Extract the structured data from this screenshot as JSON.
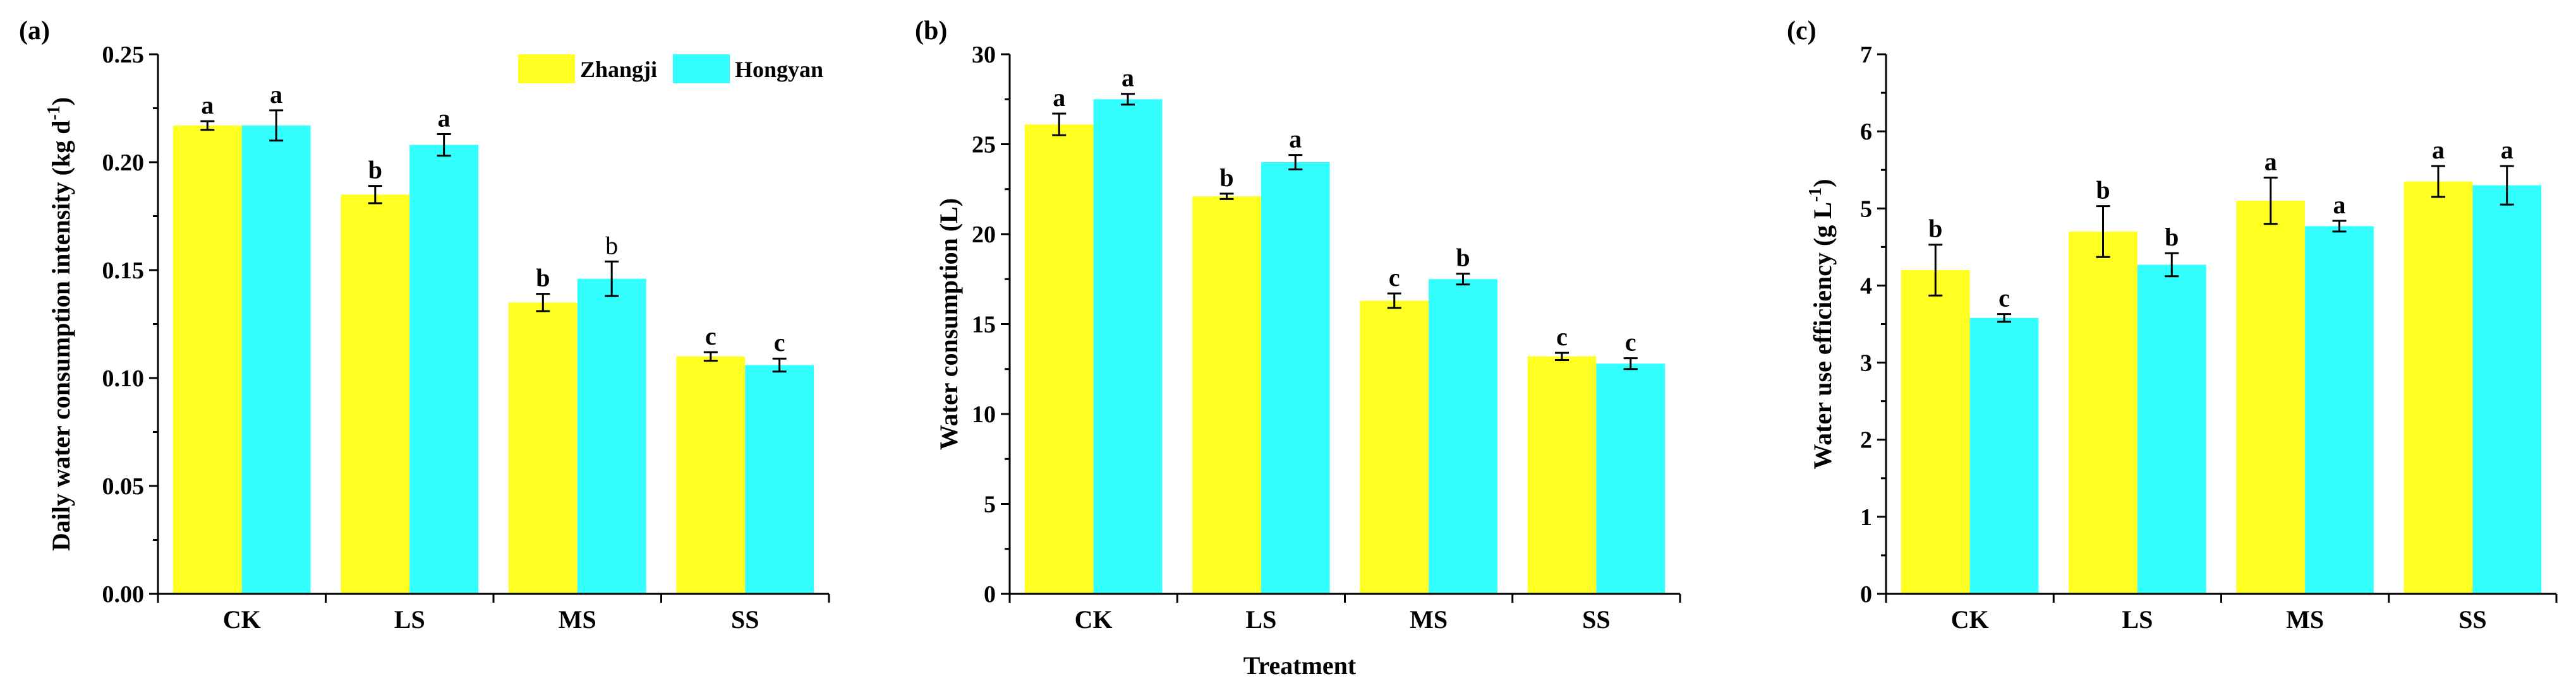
{
  "colors": {
    "series1": "#ffff22",
    "series2": "#33ffff",
    "axis": "#000000"
  },
  "legend": {
    "items": [
      "Zhangji",
      "Hongyan"
    ]
  },
  "shared_xlabel": "Treatment",
  "chart_data": [
    {
      "type": "bar",
      "panel_label": "(a)",
      "title": "",
      "xlabel": "",
      "ylabel": "Daily water consumption intensity  (kg d",
      "ylabel_sup": "-1",
      "ylabel_close": ")",
      "ylim": [
        0,
        0.25
      ],
      "yticks": [
        0,
        0.05,
        0.1,
        0.15,
        0.2,
        0.25
      ],
      "ytick_labels": [
        "0.00",
        "0.05",
        "0.10",
        "0.15",
        "0.20",
        "0.25"
      ],
      "categories": [
        "CK",
        "LS",
        "MS",
        "SS"
      ],
      "series": [
        {
          "name": "Zhangji",
          "values": [
            0.217,
            0.185,
            0.135,
            0.11
          ],
          "errors": [
            0.002,
            0.004,
            0.004,
            0.002
          ],
          "letters": [
            "a",
            "b",
            "b",
            "c"
          ],
          "letter_bold": [
            true,
            true,
            true,
            true
          ]
        },
        {
          "name": "Hongyan",
          "values": [
            0.217,
            0.208,
            0.146,
            0.106
          ],
          "errors": [
            0.007,
            0.005,
            0.008,
            0.003
          ],
          "letters": [
            "a",
            "a",
            "b",
            "c"
          ],
          "letter_bold": [
            true,
            true,
            false,
            true
          ]
        }
      ]
    },
    {
      "type": "bar",
      "panel_label": "(b)",
      "title": "",
      "xlabel": "Treatment",
      "ylabel": "Water consumption  (L)",
      "ylabel_sup": "",
      "ylabel_close": "",
      "ylim": [
        0,
        30
      ],
      "yticks": [
        0,
        5,
        10,
        15,
        20,
        25,
        30
      ],
      "ytick_labels": [
        "0",
        "5",
        "10",
        "15",
        "20",
        "25",
        "30"
      ],
      "categories": [
        "CK",
        "LS",
        "MS",
        "SS"
      ],
      "series": [
        {
          "name": "Zhangji",
          "values": [
            26.1,
            22.1,
            16.3,
            13.2
          ],
          "errors": [
            0.6,
            0.15,
            0.4,
            0.2
          ],
          "letters": [
            "a",
            "b",
            "c",
            "c"
          ],
          "letter_bold": [
            true,
            true,
            true,
            true
          ]
        },
        {
          "name": "Hongyan",
          "values": [
            27.5,
            24.0,
            17.5,
            12.8
          ],
          "errors": [
            0.3,
            0.4,
            0.3,
            0.3
          ],
          "letters": [
            "a",
            "a",
            "b",
            "c"
          ],
          "letter_bold": [
            true,
            true,
            true,
            true
          ]
        }
      ]
    },
    {
      "type": "bar",
      "panel_label": "(c)",
      "title": "",
      "xlabel": "",
      "ylabel": "Water use efficiency  (g L",
      "ylabel_sup": "-1",
      "ylabel_close": ")",
      "ylim": [
        0,
        7
      ],
      "yticks": [
        0,
        1,
        2,
        3,
        4,
        5,
        6,
        7
      ],
      "ytick_labels": [
        "0",
        "1",
        "2",
        "3",
        "4",
        "5",
        "6",
        "7"
      ],
      "categories": [
        "CK",
        "LS",
        "MS",
        "SS"
      ],
      "series": [
        {
          "name": "Zhangji",
          "values": [
            4.2,
            4.7,
            5.1,
            5.35
          ],
          "errors": [
            0.33,
            0.33,
            0.3,
            0.2
          ],
          "letters": [
            "b",
            "b",
            "a",
            "a"
          ],
          "letter_bold": [
            true,
            true,
            true,
            true
          ]
        },
        {
          "name": "Hongyan",
          "values": [
            3.58,
            4.27,
            4.77,
            5.3
          ],
          "errors": [
            0.05,
            0.15,
            0.07,
            0.25
          ],
          "letters": [
            "c",
            "b",
            "a",
            "a"
          ],
          "letter_bold": [
            true,
            true,
            true,
            true
          ]
        }
      ]
    }
  ]
}
